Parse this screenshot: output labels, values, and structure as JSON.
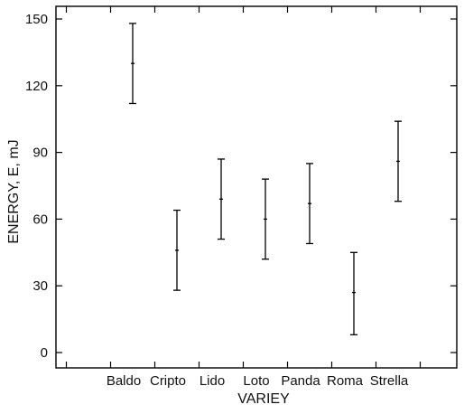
{
  "chart_data": {
    "type": "errorbar",
    "xlabel": "VARIEY",
    "ylabel": "ENERGY, E, mJ",
    "ylim": [
      -3,
      150
    ],
    "yticks": [
      0,
      30,
      60,
      90,
      120,
      150
    ],
    "categories": [
      "Baldo",
      "Cripto",
      "Lido",
      "Loto",
      "Panda",
      "Roma",
      "Strella"
    ],
    "series": [
      {
        "mean": [
          130,
          46,
          69,
          60,
          67,
          27,
          86
        ],
        "lower": [
          112,
          28,
          51,
          42,
          49,
          8,
          68
        ],
        "upper": [
          148,
          64,
          87,
          78,
          85,
          45,
          104
        ]
      }
    ],
    "grid": false
  }
}
